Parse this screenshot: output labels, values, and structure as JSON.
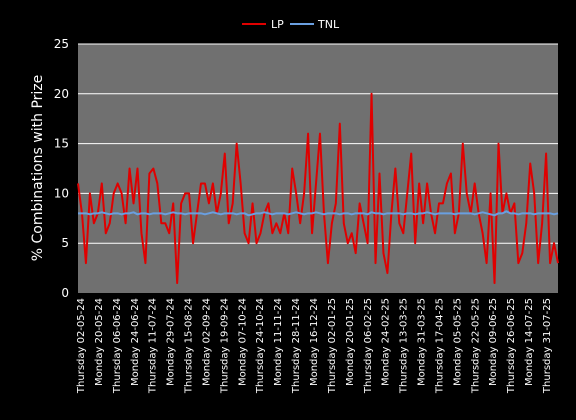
{
  "chart_data": {
    "type": "line",
    "title": "",
    "xlabel": "",
    "ylabel": "% Combinations with Prize",
    "ylim": [
      0,
      25
    ],
    "yticks": [
      0,
      5,
      10,
      15,
      20,
      25
    ],
    "grid": true,
    "legend_position": "top",
    "tick_labels": [
      "Thursday  02-05-24",
      "Monday  20-05-24",
      "Thursday  06-06-24",
      "Monday  24-06-24",
      "Thursday  11-07-24",
      "Monday  29-07-24",
      "Thursday  15-08-24",
      "Monday  02-09-24",
      "Thursday  19-09-24",
      "Monday  07-10-24",
      "Thursday  24-10-24",
      "Monday  11-11-24",
      "Thursday  28-11-24",
      "Monday  16-12-24",
      "Thursday  02-01-25",
      "Monday  20-01-25",
      "Thursday  06-02-25",
      "Monday  24-02-25",
      "Thursday  13-03-25",
      "Monday  31-03-25",
      "Thursday  17-04-25",
      "Monday  05-05-25",
      "Thursday  22-05-25",
      "Monday  09-06-25",
      "Thursday  26-06-25",
      "Monday  14-07-25",
      "Thursday  31-07-25"
    ],
    "series": [
      {
        "name": "LP",
        "color": "#e00000",
        "values": [
          11,
          8,
          3,
          10,
          7,
          8,
          11,
          6,
          7,
          10,
          11,
          10,
          7,
          12.5,
          9,
          12.5,
          6,
          3,
          12,
          12.5,
          11,
          7,
          7,
          6,
          9,
          1,
          9,
          10,
          10,
          5,
          8,
          11,
          11,
          9,
          11,
          8,
          10,
          14,
          7,
          9,
          15,
          11,
          6,
          5,
          9,
          5,
          6,
          8,
          9,
          6,
          7,
          6,
          8,
          6,
          12.5,
          10,
          7,
          10,
          16,
          6,
          11,
          16,
          8,
          3,
          7,
          9,
          17,
          7,
          5,
          6,
          4,
          9,
          7,
          5,
          20,
          3,
          12,
          4,
          2,
          8,
          12.5,
          7,
          6,
          10,
          14,
          5,
          11,
          7,
          11,
          8,
          6,
          9,
          9,
          11,
          12,
          6,
          8,
          15,
          10,
          8,
          11,
          8,
          6,
          3,
          10,
          1,
          15,
          8,
          10,
          8,
          9,
          3,
          4,
          7,
          13,
          10,
          3,
          7,
          14,
          3,
          5,
          3
        ]
      },
      {
        "name": "TNL",
        "color": "#6a9fe0",
        "values": [
          8,
          8,
          8,
          7.9,
          8,
          8,
          8.1,
          8,
          7.9,
          8,
          8,
          7.9,
          8,
          8,
          8.1,
          7.9,
          8,
          8,
          7.9,
          8,
          8,
          8,
          7.9,
          8,
          8.1,
          8,
          8,
          7.9,
          8,
          8,
          8,
          8,
          7.9,
          8,
          8.1,
          8,
          7.9,
          8,
          8,
          8,
          7.9,
          8,
          8,
          7.8,
          7.9,
          8,
          8,
          8.1,
          8,
          7.9,
          8,
          8,
          8,
          7.9,
          8,
          8.1,
          8,
          7.9,
          8,
          8,
          8.1,
          8,
          7.9,
          8,
          8,
          8,
          7.9,
          8,
          8,
          7.9,
          8,
          8,
          8,
          7.9,
          8.1,
          8,
          8,
          7.9,
          8,
          8,
          8,
          8,
          7.9,
          8,
          8,
          7.9,
          8,
          8,
          8.1,
          8,
          7.9,
          8,
          8,
          8,
          8,
          7.9,
          8,
          8,
          8,
          8,
          7.9,
          8,
          8.1,
          8,
          7.9,
          7.8,
          8,
          8,
          8.2,
          8,
          8,
          7.9,
          8,
          8,
          8,
          7.9,
          8,
          8,
          8,
          8,
          7.9,
          8
        ]
      }
    ]
  }
}
